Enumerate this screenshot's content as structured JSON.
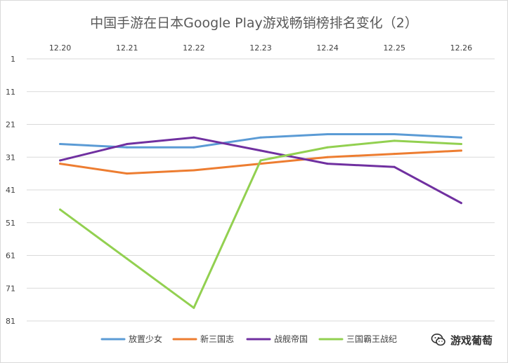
{
  "chart_data": {
    "type": "line",
    "title": "中国手游在日本Google Play游戏畅销榜排名变化（2）",
    "categories": [
      "12.20",
      "12.21",
      "12.22",
      "12.23",
      "12.24",
      "12.25",
      "12.26"
    ],
    "x_axis_position": "top",
    "y_axis": {
      "min": 1,
      "max": 81,
      "step": 10,
      "reversed": true,
      "ticks": [
        1,
        11,
        21,
        31,
        41,
        51,
        61,
        71,
        81
      ]
    },
    "grid": true,
    "legend_position": "bottom",
    "series": [
      {
        "name": "放置少女",
        "color": "#5b9bd5",
        "values": [
          27,
          28,
          28,
          25,
          24,
          24,
          25
        ]
      },
      {
        "name": "新三国志",
        "color": "#ed7d31",
        "values": [
          33,
          36,
          35,
          33,
          31,
          30,
          29
        ]
      },
      {
        "name": "战舰帝国",
        "color": "#7030a0",
        "values": [
          32,
          27,
          25,
          29,
          33,
          34,
          45
        ]
      },
      {
        "name": "三国霸王战纪",
        "color": "#92d050",
        "values": [
          47,
          62,
          77,
          32,
          28,
          26,
          27
        ]
      }
    ]
  },
  "watermark": {
    "text": "游戏葡萄",
    "icon": "wechat-icon"
  }
}
